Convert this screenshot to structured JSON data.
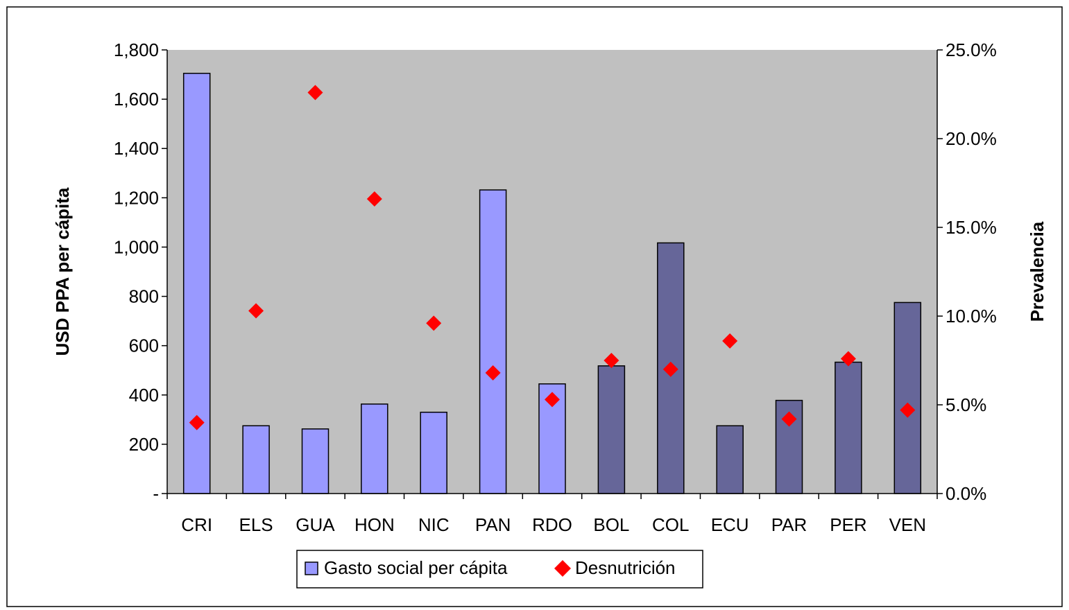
{
  "chart_data": {
    "type": "bar",
    "categories": [
      "CRI",
      "ELS",
      "GUA",
      "HON",
      "NIC",
      "PAN",
      "RDO",
      "BOL",
      "COL",
      "ECU",
      "PAR",
      "PER",
      "VEN"
    ],
    "bar_colors": [
      "#9999FF",
      "#9999FF",
      "#9999FF",
      "#9999FF",
      "#9999FF",
      "#9999FF",
      "#9999FF",
      "#666699",
      "#666699",
      "#666699",
      "#666699",
      "#666699",
      "#666699"
    ],
    "series": [
      {
        "name": "Gasto social per cápita",
        "type": "bar",
        "axis": "left",
        "color": "#9999FF",
        "values": [
          1705,
          275,
          262,
          363,
          330,
          1232,
          445,
          518,
          1017,
          275,
          378,
          533,
          775
        ]
      },
      {
        "name": "Desnutrición",
        "type": "scatter",
        "axis": "right",
        "color": "#FF0000",
        "marker": "diamond",
        "values": [
          4.0,
          10.3,
          22.6,
          16.6,
          9.6,
          6.8,
          5.3,
          7.5,
          7.0,
          8.6,
          4.2,
          7.6,
          4.7
        ]
      }
    ],
    "ylabel": "USD PPA per cápita",
    "y2label": "Prevalencia",
    "ylim": [
      0,
      1800
    ],
    "y2lim": [
      0,
      25
    ],
    "yticks": [
      "-",
      "200",
      "400",
      "600",
      "800",
      "1,000",
      "1,200",
      "1,400",
      "1,600",
      "1,800"
    ],
    "y2ticks": [
      "0.0%",
      "5.0%",
      "10.0%",
      "15.0%",
      "20.0%",
      "25.0%"
    ],
    "legend_position": "bottom",
    "plot_background": "#C0C0C0",
    "grid": false
  }
}
